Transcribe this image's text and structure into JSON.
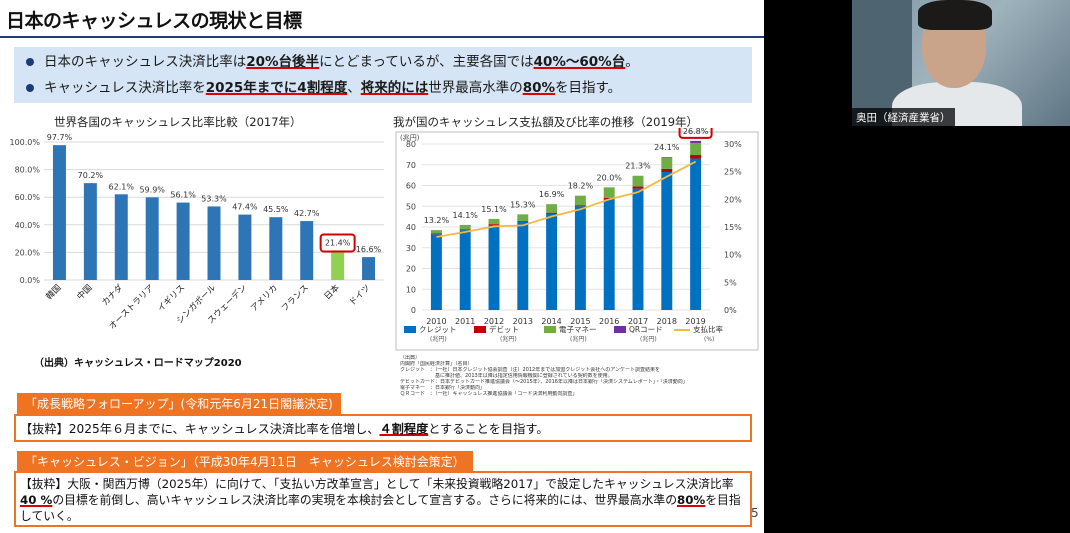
{
  "slide": {
    "title": "日本のキャッシュレスの現状と目標",
    "bullets": [
      {
        "t1": "日本のキャッシュレス決済比率は",
        "h1": "20%台後半",
        "t2": "にとどまっているが、主要各国では",
        "h2": "40%〜60%台",
        "t3": "。",
        "t4": "",
        "h3": "",
        "t5": ""
      },
      {
        "t1": "キャッシュレス決済比率を",
        "h1": "2025年までに4割程度",
        "t2": "、",
        "h2": "将来的には",
        "t3": "世界最高水準の",
        "h3": "80%",
        "t4": "を目指す。",
        "t5": ""
      }
    ],
    "source_left": "（出典）キャッシュレス・ロードマップ2020",
    "source_right": [
      "（出典）",
      "内閣府「国民経済計算」（名目）",
      "クレジット　：（一社）日本クレジット協会調査（注）2012年までは加盟クレジット会社へのアンケート調査結果を",
      "　　　　　　　基に推計値、2013年以降は指定信用情報機関に登録されている契約数を使用。",
      "デビットカード：日本デビットカード推進協議会（〜2015年）、2016年以降は日本銀行「決済システムレポート」・「決済動向」",
      "電子マネー　：日本銀行「決済動向」",
      "ＱＲコード　：（一社）キャッシュレス推進協議会「コード決済利用動向調査」"
    ],
    "tag1": "「成長戦略フォローアップ」(令和元年6月21日閣議決定)",
    "quote1": {
      "t1": "【抜粋】2025年６月までに、キャッシュレス決済比率を倍増し、",
      "h1": "４割程度",
      "t2": "とすることを目指す。"
    },
    "tag2": "「キャッシュレス・ビジョン」（平成30年4月11日　キャッシュレス検討会策定）",
    "quote2": {
      "t1": "【抜粋】大阪・関西万博（2025年）に向けて、「支払い方改革宣言」として「未来投資戦略2017」で設定したキャッシュレス決済比率",
      "h1": "40 %",
      "t2": "の目標を前倒し、高いキャッシュレス決済比率の実現を本検討会として宣言する。さらに将来的には、世界最高水準の",
      "h2": "80%",
      "t3": "を目指していく。"
    },
    "page_number": "5"
  },
  "webcam": {
    "name": "奥田（経済産業省）"
  },
  "colors": {
    "bar_blue": "#2e75b6",
    "japan_green": "#92d050",
    "credit_blue": "#0070c0",
    "debit_red": "#c00000",
    "emoney_green": "#70ad47",
    "qr_purple": "#7030a0",
    "ratio_line": "#f4b942",
    "highlight_red": "#d00000",
    "orange": "#ee7322"
  },
  "chart_data": [
    {
      "type": "bar",
      "title": "世界各国のキャッシュレス比率比較（2017年）",
      "categories": [
        "韓国",
        "中国",
        "カナダ",
        "オーストラリア",
        "イギリス",
        "シンガポール",
        "スウェーデン",
        "アメリカ",
        "フランス",
        "日本",
        "ドイツ"
      ],
      "values": [
        97.7,
        70.2,
        62.1,
        59.9,
        56.1,
        53.3,
        47.4,
        45.5,
        42.7,
        21.4,
        16.6
      ],
      "value_labels": [
        "97.7%",
        "70.2%",
        "62.1%",
        "59.9%",
        "56.1%",
        "53.3%",
        "47.4%",
        "45.5%",
        "42.7%",
        "21.4%",
        "16.6%"
      ],
      "yticks": [
        "0.0%",
        "20.0%",
        "40.0%",
        "60.0%",
        "80.0%",
        "100.0%"
      ],
      "ylim": [
        0,
        100
      ],
      "highlight": "日本",
      "grid": true
    },
    {
      "type": "bar",
      "title": "我が国のキャッシュレス支払額及び比率の推移（2019年）",
      "x": [
        "2010",
        "2011",
        "2012",
        "2013",
        "2014",
        "2015",
        "2016",
        "2017",
        "2018",
        "2019"
      ],
      "y_left_unit": "(兆円)",
      "yticks_left": [
        "0",
        "10",
        "20",
        "30",
        "40",
        "50",
        "60",
        "70",
        "80"
      ],
      "ylim_left": [
        0,
        80
      ],
      "yticks_right": [
        "0%",
        "5%",
        "10%",
        "15%",
        "20%",
        "25%",
        "30%"
      ],
      "ylim_right": [
        0,
        30
      ],
      "series": [
        {
          "name": "クレジット",
          "unit": "(兆円)",
          "kind": "bar",
          "values": [
            36.5,
            38.5,
            41.0,
            42.5,
            46.5,
            50.0,
            53.5,
            58.5,
            66.5,
            73.0
          ]
        },
        {
          "name": "デビット",
          "unit": "(兆円)",
          "kind": "bar",
          "values": [
            0.4,
            0.4,
            0.4,
            0.4,
            0.4,
            0.5,
            0.5,
            1.0,
            1.5,
            1.7
          ]
        },
        {
          "name": "電子マネー",
          "unit": "(兆円)",
          "kind": "bar",
          "values": [
            1.6,
            2.1,
            2.5,
            3.2,
            4.1,
            4.6,
            5.1,
            5.2,
            5.5,
            5.8
          ]
        },
        {
          "name": "QRコード",
          "unit": "(兆円)",
          "kind": "bar",
          "values": [
            0,
            0,
            0,
            0,
            0,
            0,
            0,
            0,
            0.2,
            1.0
          ]
        },
        {
          "name": "支払比率",
          "unit": "(%)",
          "kind": "line",
          "axis": "right",
          "values": [
            13.2,
            14.1,
            15.1,
            15.3,
            16.9,
            18.2,
            20.0,
            21.3,
            24.1,
            26.8
          ]
        }
      ],
      "ratio_labels": [
        "13.2%",
        "14.1%",
        "15.1%",
        "15.3%",
        "16.9%",
        "18.2%",
        "20.0%",
        "21.3%",
        "24.1%",
        "26.8%"
      ],
      "highlight": "2019",
      "legend_position": "bottom",
      "grid": true
    }
  ]
}
